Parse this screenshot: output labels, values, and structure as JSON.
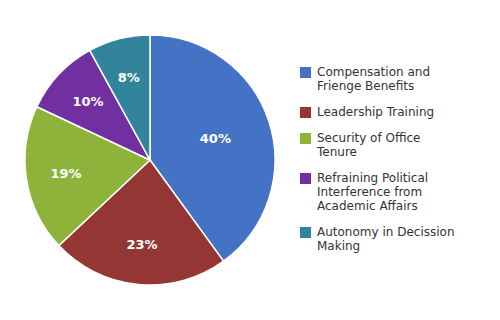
{
  "chart_data": {
    "type": "pie",
    "categories": [
      "Compensation and\nFrienge Benefits",
      "Leadership Training",
      "Security of Office\nTenure",
      "Refraining Political\nInterference from\nAcademic Affairs",
      "Autonomy in Decission\nMaking"
    ],
    "values": [
      40,
      23,
      19,
      10,
      8
    ],
    "value_labels": [
      "40%",
      "23%",
      "19%",
      "10%",
      "8%"
    ],
    "colors": [
      "#4472C4",
      "#943634",
      "#8DB33A",
      "#7030A0",
      "#31849B"
    ],
    "data_labels": true,
    "legend": "right"
  }
}
